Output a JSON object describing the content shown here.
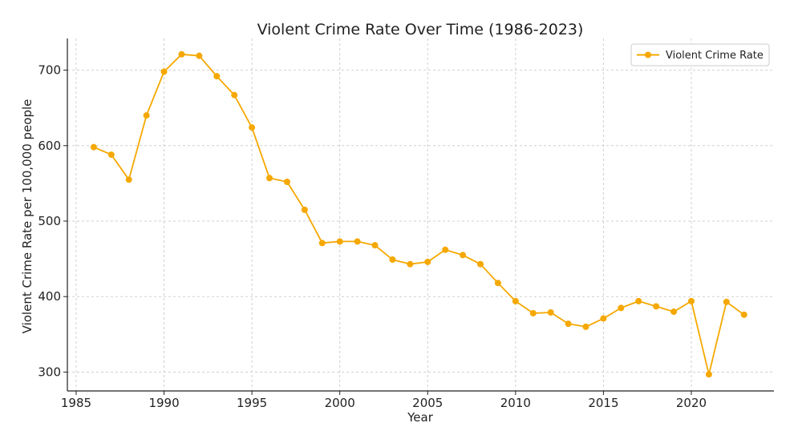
{
  "chart_data": {
    "type": "line",
    "title": "Violent Crime Rate Over Time (1986-2023)",
    "xlabel": "Year",
    "ylabel": "Violent Crime Rate per 100,000 people",
    "xlim": [
      1984.5,
      2024.7
    ],
    "ylim": [
      275,
      742
    ],
    "x_ticks": [
      1985,
      1990,
      1995,
      2000,
      2005,
      2010,
      2015,
      2020
    ],
    "y_ticks": [
      300,
      400,
      500,
      600,
      700
    ],
    "grid": true,
    "legend_position": "top-right",
    "series": [
      {
        "name": "Violent Crime Rate",
        "color": "#f5a800",
        "x": [
          1986,
          1987,
          1988,
          1989,
          1990,
          1991,
          1992,
          1993,
          1994,
          1995,
          1996,
          1997,
          1998,
          1999,
          2000,
          2001,
          2002,
          2003,
          2004,
          2005,
          2006,
          2007,
          2008,
          2009,
          2010,
          2011,
          2012,
          2013,
          2014,
          2015,
          2016,
          2017,
          2018,
          2019,
          2020,
          2021,
          2022,
          2023
        ],
        "values": [
          598,
          588,
          555,
          640,
          698,
          721,
          719,
          692,
          667,
          624,
          557,
          552,
          515,
          471,
          473,
          473,
          468,
          449,
          443,
          446,
          462,
          455,
          443,
          418,
          394,
          378,
          379,
          364,
          360,
          371,
          385,
          394,
          387,
          380,
          394,
          297,
          393,
          376
        ]
      }
    ]
  }
}
